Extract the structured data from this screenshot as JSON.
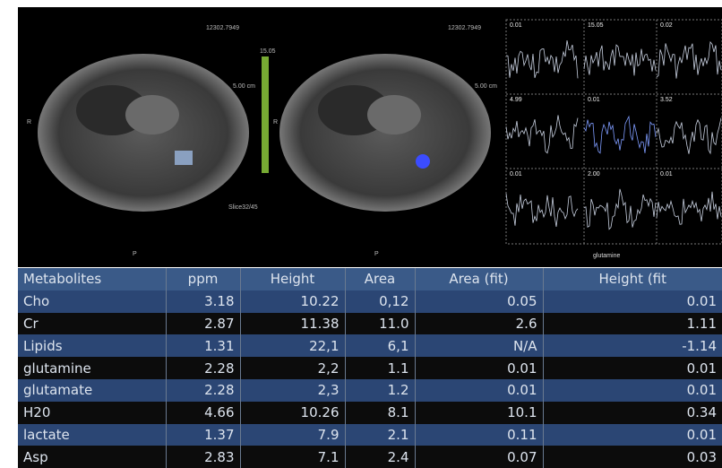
{
  "viewer": {
    "left_panel": {
      "id": "12302.7949",
      "scale": "5.00 cm",
      "colorbar_max": "15.05",
      "side": "R",
      "orient": "P",
      "slice": "Slice32/45"
    },
    "right_panel": {
      "id": "12302.7949",
      "scale": "5.00 cm",
      "side": "R",
      "orient": "P"
    },
    "spectra": {
      "labels": [
        "0.01",
        "15.05",
        "0.02",
        "4.99",
        "0.01",
        "3.52",
        "0.01",
        "2.00",
        "0.01"
      ],
      "caption": "glutamine"
    }
  },
  "table": {
    "header": [
      "Metabolites",
      "ppm",
      "Height",
      "Area",
      "Area (fit)",
      "Height (fit"
    ],
    "rows": [
      [
        "Cho",
        "3.18",
        "10.22",
        "0,12",
        "0.05",
        "0.01"
      ],
      [
        "Cr",
        "2.87",
        "11.38",
        "11.0",
        "2.6",
        "1.11"
      ],
      [
        "Lipids",
        "1.31",
        "22,1",
        "6,1",
        "N/A",
        "-1.14"
      ],
      [
        "glutamine",
        "2.28",
        "2,2",
        "1.1",
        "0.01",
        "0.01"
      ],
      [
        "glutamate",
        "2.28",
        "2,3",
        "1.2",
        "0.01",
        "0.01"
      ],
      [
        "H20",
        "4.66",
        "10.26",
        "8.1",
        "10.1",
        "0.34"
      ],
      [
        "lactate",
        "1.37",
        "7.9",
        "2.1",
        "0.11",
        "0.01"
      ],
      [
        "Asp",
        "2.83",
        "7.1",
        "2.4",
        "0.07",
        "0.03"
      ]
    ]
  }
}
